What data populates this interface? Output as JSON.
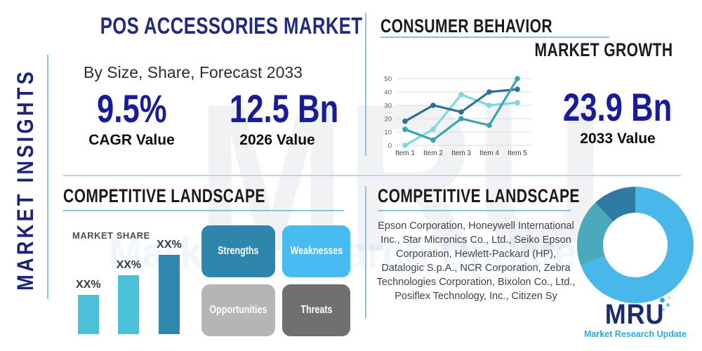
{
  "colors": {
    "navy_title": "#212a7e",
    "navy_value": "#191c99",
    "accent_line": "#8cc3da",
    "heading_black": "#191a1c",
    "logo_navy": "#1c2a6e",
    "logo_blue": "#2fa8e1"
  },
  "watermark": {
    "text": "MRU",
    "tagline": "Market Research Update"
  },
  "sidebar": {
    "label": "MARKET INSIGHTS"
  },
  "header": {
    "title": "POS ACCESSORIES MARKET",
    "subtitle": "By Size, Share, Forecast 2033"
  },
  "stats": {
    "cagr": {
      "value": "9.5%",
      "label": "CAGR Value"
    },
    "v2026": {
      "value": "12.5 Bn",
      "label": "2026 Value"
    },
    "v2033": {
      "value": "23.9 Bn",
      "label": "2033 Value"
    }
  },
  "consumer_behavior": {
    "title": "CONSUMER BEHAVIOR",
    "subtitle": "MARKET GROWTH"
  },
  "competitive_left": {
    "title": "COMPETITIVE LANDSCAPE",
    "market_share_label": "MARKET SHARE",
    "swot": [
      {
        "label": "Strengths",
        "color": "#2e86ad"
      },
      {
        "label": "Weaknesses",
        "color": "#47bbf2"
      },
      {
        "label": "Opportunities",
        "color": "#b5b5b5"
      },
      {
        "label": "Threats",
        "color": "#707070"
      }
    ]
  },
  "competitive_right": {
    "title": "COMPETITIVE LANDSCAPE",
    "companies": "Epson Corporation, Honeywell International Inc., Star Micronics Co., Ltd., Seiko Epson Corporation, Hewlett-Packard (HP), Datalogic S.p.A., NCR Corporation, Zebra Technologies Corporation, Bixolon Co., Ltd., Posiflex Technology, Inc., Citizen Sy"
  },
  "logo": {
    "text": "MRU",
    "tagline": "Market Research Update"
  },
  "chart_data": [
    {
      "id": "market-growth-line",
      "type": "line",
      "x": [
        "Item 1",
        "Item 2",
        "Item 3",
        "Item 4",
        "Item 5"
      ],
      "series": [
        {
          "name": "light-cyan-series",
          "color": "#7ed8de",
          "values": [
            0,
            12,
            38,
            30,
            32
          ]
        },
        {
          "name": "dark-blue-series",
          "color": "#2e7092",
          "values": [
            18,
            30,
            25,
            40,
            42
          ]
        },
        {
          "name": "teal-series",
          "color": "#3aa2b2",
          "values": [
            12,
            4,
            20,
            15,
            50
          ]
        }
      ],
      "ylim": [
        0,
        50
      ],
      "yticks": [
        0,
        10,
        20,
        30,
        40,
        50
      ],
      "grid": true,
      "legend": false
    },
    {
      "id": "market-share-bars",
      "type": "bar",
      "title": "MARKET SHARE",
      "categories": [
        "XX%",
        "XX%",
        "XX%"
      ],
      "value_labels": [
        "XX%",
        "XX%",
        "XX%"
      ],
      "values": [
        56,
        84,
        113
      ],
      "unit": "relative-bar-height-px",
      "colors": [
        "#4ac0d9",
        "#4ac0d9",
        "#2f86ae"
      ]
    },
    {
      "id": "company-share-donut",
      "type": "pie",
      "donut": true,
      "slices": [
        {
          "name": "primary-slice",
          "value": 69.5,
          "color": "#49b7e9"
        },
        {
          "name": "secondary-slice",
          "value": 18.5,
          "color": "#4aa9bb"
        },
        {
          "name": "tertiary-slice",
          "value": 12,
          "color": "#2d7ba3"
        }
      ]
    }
  ]
}
